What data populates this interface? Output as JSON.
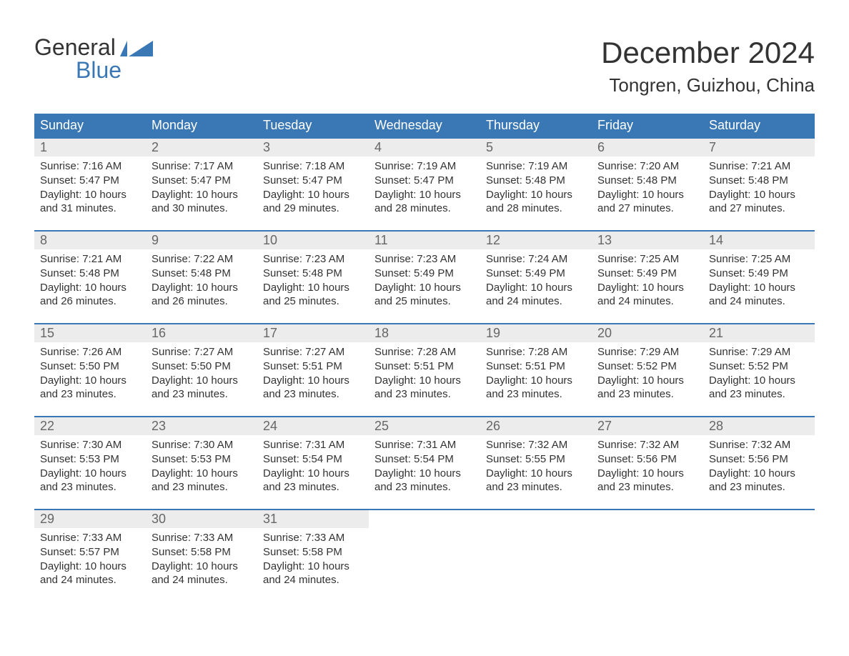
{
  "logo": {
    "line1": "General",
    "line2": "Blue",
    "brand_color": "#3a78b5"
  },
  "title": "December 2024",
  "location": "Tongren, Guizhou, China",
  "colors": {
    "header_bg": "#3a78b5",
    "header_text": "#ffffff",
    "daynum_bg": "#ececec",
    "daynum_text": "#666666",
    "body_text": "#333333",
    "week_border": "#3a78b5",
    "page_bg": "#ffffff"
  },
  "typography": {
    "title_fontsize": 42,
    "location_fontsize": 26,
    "header_fontsize": 18,
    "daynum_fontsize": 18,
    "body_fontsize": 15
  },
  "day_headers": [
    "Sunday",
    "Monday",
    "Tuesday",
    "Wednesday",
    "Thursday",
    "Friday",
    "Saturday"
  ],
  "weeks": [
    [
      {
        "n": "1",
        "sunrise": "Sunrise: 7:16 AM",
        "sunset": "Sunset: 5:47 PM",
        "d1": "Daylight: 10 hours",
        "d2": "and 31 minutes."
      },
      {
        "n": "2",
        "sunrise": "Sunrise: 7:17 AM",
        "sunset": "Sunset: 5:47 PM",
        "d1": "Daylight: 10 hours",
        "d2": "and 30 minutes."
      },
      {
        "n": "3",
        "sunrise": "Sunrise: 7:18 AM",
        "sunset": "Sunset: 5:47 PM",
        "d1": "Daylight: 10 hours",
        "d2": "and 29 minutes."
      },
      {
        "n": "4",
        "sunrise": "Sunrise: 7:19 AM",
        "sunset": "Sunset: 5:47 PM",
        "d1": "Daylight: 10 hours",
        "d2": "and 28 minutes."
      },
      {
        "n": "5",
        "sunrise": "Sunrise: 7:19 AM",
        "sunset": "Sunset: 5:48 PM",
        "d1": "Daylight: 10 hours",
        "d2": "and 28 minutes."
      },
      {
        "n": "6",
        "sunrise": "Sunrise: 7:20 AM",
        "sunset": "Sunset: 5:48 PM",
        "d1": "Daylight: 10 hours",
        "d2": "and 27 minutes."
      },
      {
        "n": "7",
        "sunrise": "Sunrise: 7:21 AM",
        "sunset": "Sunset: 5:48 PM",
        "d1": "Daylight: 10 hours",
        "d2": "and 27 minutes."
      }
    ],
    [
      {
        "n": "8",
        "sunrise": "Sunrise: 7:21 AM",
        "sunset": "Sunset: 5:48 PM",
        "d1": "Daylight: 10 hours",
        "d2": "and 26 minutes."
      },
      {
        "n": "9",
        "sunrise": "Sunrise: 7:22 AM",
        "sunset": "Sunset: 5:48 PM",
        "d1": "Daylight: 10 hours",
        "d2": "and 26 minutes."
      },
      {
        "n": "10",
        "sunrise": "Sunrise: 7:23 AM",
        "sunset": "Sunset: 5:48 PM",
        "d1": "Daylight: 10 hours",
        "d2": "and 25 minutes."
      },
      {
        "n": "11",
        "sunrise": "Sunrise: 7:23 AM",
        "sunset": "Sunset: 5:49 PM",
        "d1": "Daylight: 10 hours",
        "d2": "and 25 minutes."
      },
      {
        "n": "12",
        "sunrise": "Sunrise: 7:24 AM",
        "sunset": "Sunset: 5:49 PM",
        "d1": "Daylight: 10 hours",
        "d2": "and 24 minutes."
      },
      {
        "n": "13",
        "sunrise": "Sunrise: 7:25 AM",
        "sunset": "Sunset: 5:49 PM",
        "d1": "Daylight: 10 hours",
        "d2": "and 24 minutes."
      },
      {
        "n": "14",
        "sunrise": "Sunrise: 7:25 AM",
        "sunset": "Sunset: 5:49 PM",
        "d1": "Daylight: 10 hours",
        "d2": "and 24 minutes."
      }
    ],
    [
      {
        "n": "15",
        "sunrise": "Sunrise: 7:26 AM",
        "sunset": "Sunset: 5:50 PM",
        "d1": "Daylight: 10 hours",
        "d2": "and 23 minutes."
      },
      {
        "n": "16",
        "sunrise": "Sunrise: 7:27 AM",
        "sunset": "Sunset: 5:50 PM",
        "d1": "Daylight: 10 hours",
        "d2": "and 23 minutes."
      },
      {
        "n": "17",
        "sunrise": "Sunrise: 7:27 AM",
        "sunset": "Sunset: 5:51 PM",
        "d1": "Daylight: 10 hours",
        "d2": "and 23 minutes."
      },
      {
        "n": "18",
        "sunrise": "Sunrise: 7:28 AM",
        "sunset": "Sunset: 5:51 PM",
        "d1": "Daylight: 10 hours",
        "d2": "and 23 minutes."
      },
      {
        "n": "19",
        "sunrise": "Sunrise: 7:28 AM",
        "sunset": "Sunset: 5:51 PM",
        "d1": "Daylight: 10 hours",
        "d2": "and 23 minutes."
      },
      {
        "n": "20",
        "sunrise": "Sunrise: 7:29 AM",
        "sunset": "Sunset: 5:52 PM",
        "d1": "Daylight: 10 hours",
        "d2": "and 23 minutes."
      },
      {
        "n": "21",
        "sunrise": "Sunrise: 7:29 AM",
        "sunset": "Sunset: 5:52 PM",
        "d1": "Daylight: 10 hours",
        "d2": "and 23 minutes."
      }
    ],
    [
      {
        "n": "22",
        "sunrise": "Sunrise: 7:30 AM",
        "sunset": "Sunset: 5:53 PM",
        "d1": "Daylight: 10 hours",
        "d2": "and 23 minutes."
      },
      {
        "n": "23",
        "sunrise": "Sunrise: 7:30 AM",
        "sunset": "Sunset: 5:53 PM",
        "d1": "Daylight: 10 hours",
        "d2": "and 23 minutes."
      },
      {
        "n": "24",
        "sunrise": "Sunrise: 7:31 AM",
        "sunset": "Sunset: 5:54 PM",
        "d1": "Daylight: 10 hours",
        "d2": "and 23 minutes."
      },
      {
        "n": "25",
        "sunrise": "Sunrise: 7:31 AM",
        "sunset": "Sunset: 5:54 PM",
        "d1": "Daylight: 10 hours",
        "d2": "and 23 minutes."
      },
      {
        "n": "26",
        "sunrise": "Sunrise: 7:32 AM",
        "sunset": "Sunset: 5:55 PM",
        "d1": "Daylight: 10 hours",
        "d2": "and 23 minutes."
      },
      {
        "n": "27",
        "sunrise": "Sunrise: 7:32 AM",
        "sunset": "Sunset: 5:56 PM",
        "d1": "Daylight: 10 hours",
        "d2": "and 23 minutes."
      },
      {
        "n": "28",
        "sunrise": "Sunrise: 7:32 AM",
        "sunset": "Sunset: 5:56 PM",
        "d1": "Daylight: 10 hours",
        "d2": "and 23 minutes."
      }
    ],
    [
      {
        "n": "29",
        "sunrise": "Sunrise: 7:33 AM",
        "sunset": "Sunset: 5:57 PM",
        "d1": "Daylight: 10 hours",
        "d2": "and 24 minutes."
      },
      {
        "n": "30",
        "sunrise": "Sunrise: 7:33 AM",
        "sunset": "Sunset: 5:58 PM",
        "d1": "Daylight: 10 hours",
        "d2": "and 24 minutes."
      },
      {
        "n": "31",
        "sunrise": "Sunrise: 7:33 AM",
        "sunset": "Sunset: 5:58 PM",
        "d1": "Daylight: 10 hours",
        "d2": "and 24 minutes."
      },
      {
        "empty": true
      },
      {
        "empty": true
      },
      {
        "empty": true
      },
      {
        "empty": true
      }
    ]
  ]
}
